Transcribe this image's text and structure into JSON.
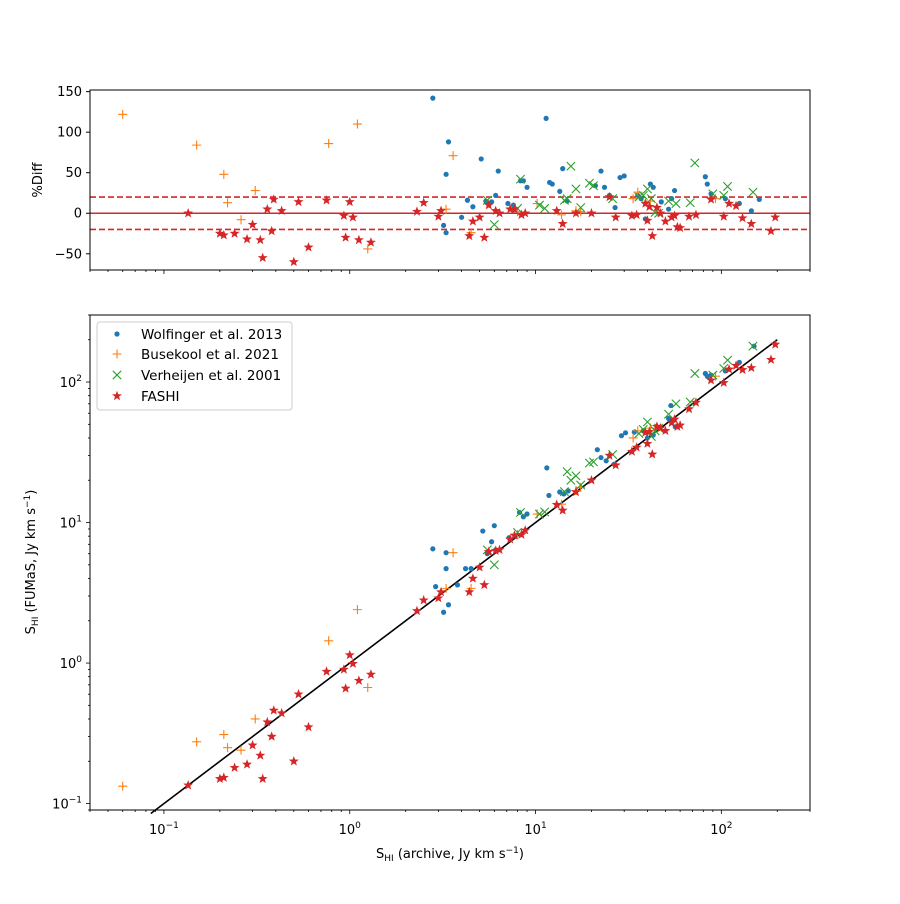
{
  "chart_data": [
    {
      "type": "scatter",
      "panel": "residual",
      "xscale": "log",
      "yscale": "linear",
      "xlim": [
        0.04,
        300
      ],
      "ylim": [
        -70,
        152
      ],
      "ylabel": "%Diff",
      "yticks": [
        -50,
        0,
        50,
        100,
        150
      ],
      "ytick_labels": [
        "−50",
        "0",
        "50",
        "100",
        "150"
      ],
      "reference_lines": [
        {
          "y": 0,
          "style": "solid",
          "color": "#d62728"
        },
        {
          "y": 20,
          "style": "dashed",
          "color": "#d62728"
        },
        {
          "y": -20,
          "style": "dashed",
          "color": "#d62728"
        }
      ],
      "series": [
        {
          "name": "Wolfinger et al. 2013",
          "marker": "dot",
          "color": "#1f77b4",
          "x": [
            2.8,
            3.3,
            3.2,
            3.3,
            3.4,
            4.0,
            4.3,
            4.6,
            5.1,
            5.4,
            5.6,
            5.8,
            6.1,
            6.3,
            7.1,
            7.6,
            8.3,
            8.6,
            9.0,
            11.4,
            11.9,
            12.3,
            13.5,
            14.0,
            14.8,
            21.0,
            22.5,
            23.5,
            25.0,
            26.8,
            28.5,
            30.0,
            35.5,
            37.0,
            39.0,
            41.5,
            43.0,
            47.5,
            52.0,
            54.0,
            56.0,
            82.0,
            84.0,
            88.0,
            105.0,
            125.0,
            145.0,
            160.0
          ],
          "y": [
            142,
            -24,
            -15,
            48,
            88,
            -5,
            16,
            8,
            67,
            15,
            12,
            14,
            22,
            52,
            12,
            10,
            40,
            40,
            32,
            117,
            38,
            36,
            27,
            55,
            15,
            34,
            52,
            32,
            22,
            7,
            44,
            46,
            22,
            18,
            -7,
            36,
            32,
            14,
            5,
            18,
            28,
            45,
            36,
            24,
            18,
            12,
            3,
            17
          ]
        },
        {
          "name": "Busekool et al. 2021",
          "marker": "plus",
          "color": "#ff7f0e",
          "x": [
            0.06,
            0.15,
            0.21,
            0.22,
            0.26,
            0.31,
            0.77,
            1.1,
            1.25,
            3.3,
            3.6,
            4.5,
            8.0,
            10.2,
            13.8,
            16.5,
            17.5,
            33.5,
            35.5,
            41.5,
            93.0
          ],
          "y": [
            122,
            84,
            48,
            13,
            -8,
            28,
            86,
            110,
            -44,
            5,
            71,
            -24,
            2,
            12,
            -2,
            3,
            2,
            18,
            26,
            15,
            18
          ]
        },
        {
          "name": "Verheijen et al. 2001",
          "marker": "x",
          "color": "#2ca02c",
          "x": [
            5.5,
            6.0,
            8.0,
            8.3,
            10.5,
            11.2,
            14.3,
            14.8,
            15.5,
            16.5,
            17.5,
            19.5,
            20.5,
            26.0,
            36.0,
            38.0,
            40.0,
            42.0,
            44.0,
            46.0,
            52.0,
            57.0,
            68.0,
            72.0,
            90.0,
            103.0,
            108.0,
            148.0
          ],
          "y": [
            16,
            -14,
            6,
            42,
            10,
            6,
            16,
            18,
            58,
            30,
            7,
            37,
            34,
            18,
            20,
            22,
            30,
            18,
            1,
            0,
            15,
            12,
            13,
            62,
            24,
            22,
            33,
            26
          ]
        },
        {
          "name": "FASHI",
          "marker": "star",
          "color": "#d62728",
          "x": [
            0.135,
            0.2,
            0.21,
            0.24,
            0.28,
            0.3,
            0.33,
            0.34,
            0.36,
            0.38,
            0.39,
            0.43,
            0.5,
            0.53,
            0.6,
            0.75,
            0.93,
            0.95,
            1.0,
            1.04,
            1.12,
            1.3,
            2.3,
            2.5,
            3.0,
            3.1,
            4.4,
            4.6,
            5.0,
            5.3,
            5.6,
            6.1,
            6.4,
            7.3,
            7.7,
            8.4,
            8.8,
            13.0,
            14.0,
            16.5,
            20.0,
            25.0,
            27.0,
            33.0,
            35.0,
            39.0,
            40.0,
            41.0,
            42.5,
            45.0,
            47.0,
            50.0,
            54.0,
            56.0,
            58.0,
            60.0,
            67.0,
            73.0,
            88.0,
            103.0,
            110.0,
            120.0,
            130.0,
            145.0,
            185.0,
            195.0
          ],
          "y": [
            0,
            -25,
            -27,
            -25,
            -32,
            -14,
            -33,
            -55,
            5,
            -22,
            17,
            3,
            -60,
            14,
            -42,
            16,
            -3,
            -30,
            14,
            -5,
            -33,
            -36,
            2,
            13,
            -4,
            3,
            -28,
            -10,
            -5,
            -30,
            10,
            3,
            0,
            5,
            5,
            -2,
            0,
            3,
            -13,
            0,
            0,
            20,
            -5,
            -3,
            -2,
            12,
            -9,
            8,
            -28,
            7,
            0,
            -10,
            -5,
            -3,
            -17,
            -18,
            -4,
            -2,
            17,
            -4,
            12,
            9,
            -6,
            -13,
            -22,
            -5
          ]
        }
      ]
    },
    {
      "type": "scatter",
      "panel": "comparison",
      "xscale": "log",
      "yscale": "log",
      "xlim": [
        0.04,
        300
      ],
      "ylim": [
        0.09,
        300
      ],
      "xlabel": "S",
      "xlabel_sub": "HI",
      "xlabel_rest": " (archive, Jy km s",
      "xlabel_sup": "−1",
      "xlabel_end": ")",
      "ylabel": "S",
      "ylabel_sub": "HI",
      "ylabel_rest": " (FUMaS, Jy km s",
      "ylabel_sup": "−1",
      "ylabel_end": ")",
      "xticks": [
        0.1,
        1,
        10,
        100
      ],
      "xtick_base": "10",
      "xtick_exps": [
        "−1",
        "0",
        "1",
        "2"
      ],
      "yticks": [
        0.1,
        1,
        10,
        100
      ],
      "ytick_base": "10",
      "ytick_exps": [
        "−1",
        "0",
        "1",
        "2"
      ],
      "one_to_one_line": {
        "from": 0.085,
        "to": 200,
        "color": "#000000"
      },
      "legend": "upper-left",
      "series": [
        {
          "name": "Wolfinger et al. 2013",
          "marker": "dot",
          "color": "#1f77b4",
          "x": [
            2.8,
            2.9,
            3.2,
            3.3,
            3.3,
            3.4,
            3.8,
            4.2,
            4.5,
            5.2,
            5.5,
            5.8,
            6.0,
            6.1,
            7.2,
            8.2,
            8.6,
            9.0,
            11.5,
            11.8,
            13.5,
            14.2,
            15.0,
            21.5,
            22.5,
            24.0,
            26.5,
            29.0,
            30.5,
            34.0,
            38.0,
            40.0,
            43.0,
            52.0,
            53.5,
            56.5,
            82.0,
            84.0,
            88.0,
            105.0,
            125.0,
            150.0
          ],
          "y": [
            6.5,
            3.5,
            2.3,
            6.1,
            4.7,
            2.6,
            3.6,
            4.7,
            4.7,
            8.7,
            6.0,
            7.3,
            9.5,
            6.4,
            7.8,
            11.8,
            11.0,
            11.5,
            24.5,
            15.6,
            16.5,
            16.0,
            16.8,
            33.0,
            29.0,
            27.5,
            26.0,
            41.5,
            43.5,
            44.0,
            45.0,
            40.0,
            42.0,
            55.0,
            68.0,
            48.0,
            115.0,
            110.0,
            112.0,
            120.0,
            138.0,
            180.0
          ]
        },
        {
          "name": "Busekool et al. 2021",
          "marker": "plus",
          "color": "#ff7f0e",
          "x": [
            0.06,
            0.15,
            0.21,
            0.22,
            0.26,
            0.31,
            0.77,
            1.1,
            1.25,
            3.3,
            3.6,
            4.5,
            8.0,
            10.2,
            13.8,
            16.5,
            17.5,
            33.5,
            35.5,
            41.5,
            93.0
          ],
          "y": [
            0.133,
            0.275,
            0.31,
            0.25,
            0.24,
            0.4,
            1.44,
            2.4,
            0.67,
            3.4,
            6.1,
            3.4,
            8.2,
            11.5,
            13.5,
            16.9,
            17.8,
            40.0,
            45.0,
            47.0,
            110.0
          ]
        },
        {
          "name": "Verheijen et al. 2001",
          "marker": "x",
          "color": "#2ca02c",
          "x": [
            5.5,
            6.0,
            8.0,
            8.3,
            10.5,
            11.2,
            14.3,
            14.8,
            15.5,
            16.5,
            17.5,
            19.5,
            20.5,
            26.0,
            36.0,
            38.0,
            40.0,
            42.0,
            44.0,
            46.0,
            52.0,
            57.0,
            68.0,
            72.0,
            90.0,
            103.0,
            108.0,
            148.0
          ],
          "y": [
            6.4,
            5.0,
            8.5,
            11.8,
            11.5,
            11.9,
            16.6,
            23.0,
            20.0,
            21.5,
            18.5,
            26.5,
            27.0,
            30.5,
            43.0,
            46.0,
            52.0,
            41.0,
            45.0,
            47.0,
            59.0,
            70.0,
            72.0,
            115.0,
            112.0,
            125.0,
            143.0,
            180.0
          ]
        },
        {
          "name": "FASHI",
          "marker": "star",
          "color": "#d62728",
          "x": [
            0.135,
            0.2,
            0.21,
            0.24,
            0.28,
            0.3,
            0.33,
            0.34,
            0.36,
            0.38,
            0.39,
            0.43,
            0.5,
            0.53,
            0.6,
            0.75,
            0.93,
            0.95,
            1.0,
            1.04,
            1.12,
            1.3,
            2.3,
            2.5,
            3.0,
            3.1,
            4.4,
            4.6,
            5.0,
            5.3,
            5.6,
            6.1,
            6.4,
            7.3,
            7.7,
            8.4,
            8.8,
            13.0,
            14.0,
            16.5,
            20.0,
            25.0,
            27.0,
            33.0,
            35.0,
            39.0,
            40.0,
            41.0,
            42.5,
            45.0,
            47.0,
            50.0,
            54.0,
            56.0,
            58.0,
            60.0,
            67.0,
            73.0,
            88.0,
            103.0,
            110.0,
            120.0,
            130.0,
            145.0,
            185.0,
            195.0
          ],
          "y": [
            0.135,
            0.15,
            0.153,
            0.18,
            0.19,
            0.26,
            0.22,
            0.15,
            0.38,
            0.3,
            0.46,
            0.44,
            0.2,
            0.6,
            0.35,
            0.87,
            0.9,
            0.66,
            1.14,
            0.99,
            0.75,
            0.83,
            2.35,
            2.8,
            2.9,
            3.2,
            3.2,
            4.0,
            4.8,
            3.6,
            6.2,
            6.3,
            6.4,
            7.6,
            8.1,
            8.2,
            8.8,
            13.4,
            12.2,
            16.5,
            20.0,
            30.0,
            25.6,
            32.0,
            34.3,
            43.7,
            36.4,
            44.3,
            30.6,
            48.2,
            47.0,
            45.0,
            51.3,
            54.3,
            48.1,
            49.2,
            64.3,
            71.5,
            103.0,
            98.9,
            123.2,
            130.8,
            122.2,
            126.2,
            144.3,
            185.3
          ]
        }
      ]
    }
  ]
}
